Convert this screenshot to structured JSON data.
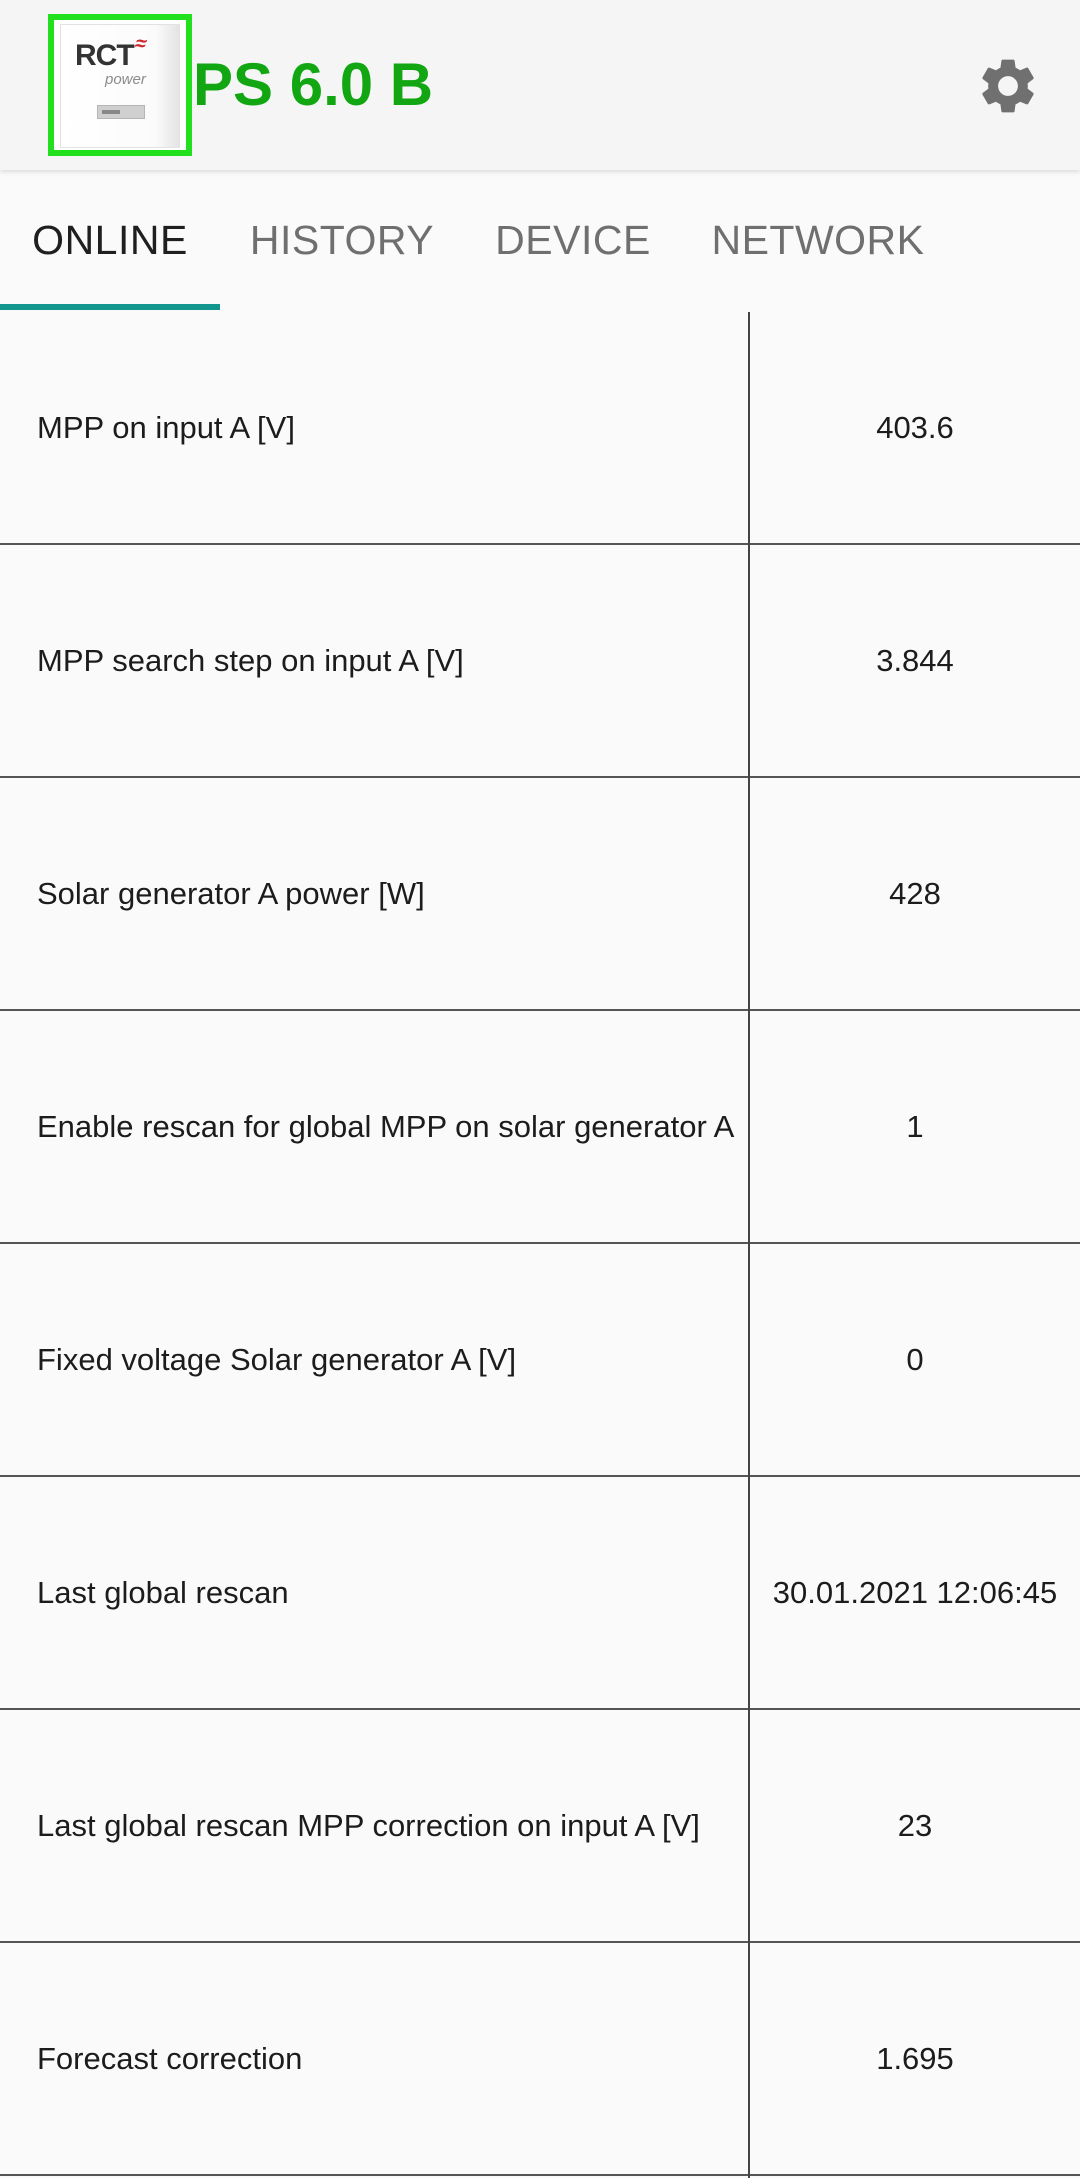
{
  "app_bar": {
    "title": "PS 6.0 B",
    "device_image": {
      "brand": "RCT",
      "brand_sub": "power",
      "icon": "inverter-device-image"
    },
    "settings_icon": "gear-icon"
  },
  "colors": {
    "title": "#12a712",
    "thumb_border": "#22e01e",
    "tab_indicator": "#12958c",
    "settings_icon": "#707070"
  },
  "tabs": [
    {
      "label": "ONLINE",
      "active": true
    },
    {
      "label": "HISTORY",
      "active": false
    },
    {
      "label": "DEVICE",
      "active": false
    },
    {
      "label": "NETWORK",
      "active": false
    }
  ],
  "rows": [
    {
      "label": "MPP on input A [V]",
      "value": "403.6"
    },
    {
      "label": "MPP search step on input A [V]",
      "value": "3.844"
    },
    {
      "label": "Solar generator A power [W]",
      "value": "428"
    },
    {
      "label": "Enable rescan for global MPP on solar generator A",
      "value": "1"
    },
    {
      "label": "Fixed voltage Solar generator A [V]",
      "value": "0"
    },
    {
      "label": "Last global rescan",
      "value": "30.01.2021 12:06:45"
    },
    {
      "label": "Last global rescan MPP correction on input A [V]",
      "value": "23"
    },
    {
      "label": "Forecast correction",
      "value": "1.695"
    }
  ]
}
